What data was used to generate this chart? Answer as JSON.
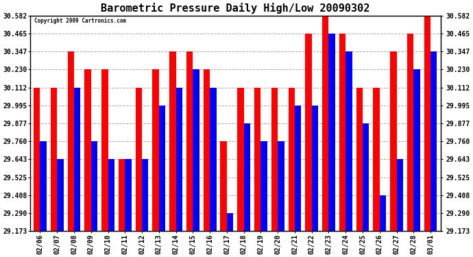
{
  "title": "Barometric Pressure Daily High/Low 20090302",
  "copyright": "Copyright 2009 Cartronics.com",
  "dates": [
    "02/06",
    "02/07",
    "02/08",
    "02/09",
    "02/10",
    "02/11",
    "02/12",
    "02/13",
    "02/14",
    "02/15",
    "02/16",
    "02/17",
    "02/18",
    "02/19",
    "02/20",
    "02/21",
    "02/22",
    "02/23",
    "02/24",
    "02/25",
    "02/26",
    "02/27",
    "02/28",
    "03/01"
  ],
  "highs": [
    30.112,
    30.112,
    30.347,
    30.23,
    30.23,
    29.643,
    30.112,
    30.23,
    30.347,
    30.347,
    30.23,
    29.76,
    30.112,
    30.112,
    30.112,
    30.112,
    30.465,
    30.582,
    30.465,
    30.112,
    30.112,
    30.347,
    30.465,
    30.582
  ],
  "lows": [
    29.76,
    29.643,
    30.112,
    29.76,
    29.643,
    29.643,
    29.643,
    29.995,
    30.112,
    30.23,
    30.112,
    29.29,
    29.877,
    29.76,
    29.76,
    29.995,
    29.995,
    30.465,
    30.347,
    29.877,
    29.408,
    29.643,
    30.23,
    30.347
  ],
  "yticks": [
    29.173,
    29.29,
    29.408,
    29.525,
    29.643,
    29.76,
    29.877,
    29.995,
    30.112,
    30.23,
    30.347,
    30.465,
    30.582
  ],
  "ymin": 29.173,
  "ymax": 30.582,
  "high_color": "#ff0000",
  "low_color": "#0000ff",
  "bg_color": "#ffffff",
  "grid_color": "#aaaaaa",
  "title_fontsize": 11,
  "bar_width": 0.38
}
